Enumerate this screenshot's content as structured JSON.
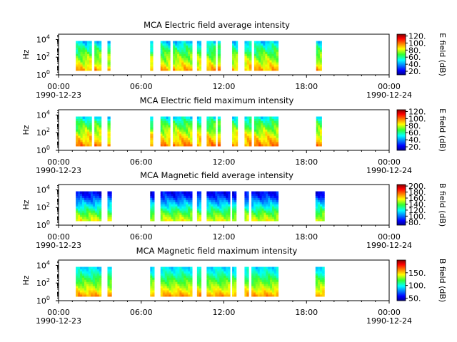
{
  "chart_data": [
    {
      "type": "heatmap",
      "title": "MCA  Electric field average intensity",
      "ylabel": "Hz",
      "colorbar_label": "E field (dB)",
      "colorbar_ticks": [
        "20.",
        "40.",
        "60.",
        "80.",
        "100.",
        "120."
      ],
      "colorbar_range": [
        10,
        125
      ],
      "ylim_log10": [
        0,
        4.6
      ],
      "yticks": [
        {
          "base": "10",
          "exp": "0"
        },
        {
          "base": "10",
          "exp": "2"
        },
        {
          "base": "10",
          "exp": "4"
        }
      ],
      "xticks": [
        {
          "time": "00:00",
          "date": "1990-12-23"
        },
        {
          "time": "06:00",
          "date": ""
        },
        {
          "time": "12:00",
          "date": ""
        },
        {
          "time": "18:00",
          "date": ""
        },
        {
          "time": "00:00",
          "date": "1990-12-24"
        }
      ],
      "xlim_hours": [
        0,
        24
      ],
      "data_intervals_hours": [
        [
          1.25,
          2.4
        ],
        [
          2.6,
          3.1
        ],
        [
          3.55,
          3.75
        ],
        [
          6.65,
          6.85
        ],
        [
          7.4,
          8.1
        ],
        [
          8.3,
          9.7
        ],
        [
          10.05,
          10.35
        ],
        [
          10.75,
          11.4
        ],
        [
          11.55,
          11.75
        ],
        [
          12.6,
          13.0
        ],
        [
          13.5,
          14.0
        ],
        [
          14.2,
          15.95
        ],
        [
          18.7,
          19.1
        ]
      ],
      "freq_profile_db": [
        {
          "log10_hz": 0.3,
          "db": 95
        },
        {
          "log10_hz": 1.3,
          "db": 82
        },
        {
          "log10_hz": 2.3,
          "db": 70
        },
        {
          "log10_hz": 3.3,
          "db": 55
        },
        {
          "log10_hz": 4.3,
          "db": 35
        }
      ]
    },
    {
      "type": "heatmap",
      "title": "MCA  Electric field maximum intensity",
      "ylabel": "Hz",
      "colorbar_label": "E field (dB)",
      "colorbar_ticks": [
        "20.",
        "40.",
        "60.",
        "80.",
        "100.",
        "120."
      ],
      "colorbar_range": [
        10,
        125
      ],
      "ylim_log10": [
        0,
        4.6
      ],
      "yticks": [
        {
          "base": "10",
          "exp": "0"
        },
        {
          "base": "10",
          "exp": "2"
        },
        {
          "base": "10",
          "exp": "4"
        }
      ],
      "xticks": [
        {
          "time": "00:00",
          "date": "1990-12-23"
        },
        {
          "time": "06:00",
          "date": ""
        },
        {
          "time": "12:00",
          "date": ""
        },
        {
          "time": "18:00",
          "date": ""
        },
        {
          "time": "00:00",
          "date": "1990-12-24"
        }
      ],
      "xlim_hours": [
        0,
        24
      ],
      "data_intervals_hours": [
        [
          1.25,
          2.4
        ],
        [
          2.6,
          3.1
        ],
        [
          3.55,
          3.75
        ],
        [
          6.65,
          6.85
        ],
        [
          7.4,
          8.1
        ],
        [
          8.3,
          9.7
        ],
        [
          10.05,
          10.35
        ],
        [
          10.75,
          11.4
        ],
        [
          11.55,
          11.75
        ],
        [
          12.6,
          13.0
        ],
        [
          13.5,
          14.0
        ],
        [
          14.2,
          15.95
        ],
        [
          18.7,
          19.1
        ]
      ],
      "freq_profile_db": [
        {
          "log10_hz": 0.3,
          "db": 100
        },
        {
          "log10_hz": 1.3,
          "db": 88
        },
        {
          "log10_hz": 2.3,
          "db": 75
        },
        {
          "log10_hz": 3.3,
          "db": 60
        },
        {
          "log10_hz": 4.3,
          "db": 40
        }
      ]
    },
    {
      "type": "heatmap",
      "title": "MCA  Magnetic field average intensity",
      "ylabel": "Hz",
      "colorbar_label": "B field (dB)",
      "colorbar_ticks": [
        "80.",
        "100.",
        "120.",
        "140.",
        "160.",
        "180.",
        "200."
      ],
      "colorbar_range": [
        70,
        205
      ],
      "ylim_log10": [
        0,
        4.6
      ],
      "yticks": [
        {
          "base": "10",
          "exp": "0"
        },
        {
          "base": "10",
          "exp": "2"
        },
        {
          "base": "10",
          "exp": "4"
        }
      ],
      "xticks": [
        {
          "time": "00:00",
          "date": "1990-12-23"
        },
        {
          "time": "06:00",
          "date": ""
        },
        {
          "time": "12:00",
          "date": ""
        },
        {
          "time": "18:00",
          "date": ""
        },
        {
          "time": "00:00",
          "date": "1990-12-24"
        }
      ],
      "xlim_hours": [
        0,
        24
      ],
      "data_intervals_hours": [
        [
          1.25,
          3.1
        ],
        [
          3.55,
          3.85
        ],
        [
          6.65,
          6.95
        ],
        [
          7.4,
          9.7
        ],
        [
          10.05,
          10.35
        ],
        [
          10.75,
          12.45
        ],
        [
          12.6,
          12.9
        ],
        [
          13.5,
          13.8
        ],
        [
          14.0,
          15.95
        ],
        [
          18.65,
          19.3
        ]
      ],
      "freq_profile_db": [
        {
          "log10_hz": 0.3,
          "db": 160
        },
        {
          "log10_hz": 1.3,
          "db": 140
        },
        {
          "log10_hz": 2.3,
          "db": 115
        },
        {
          "log10_hz": 3.3,
          "db": 90
        },
        {
          "log10_hz": 4.3,
          "db": 78
        }
      ]
    },
    {
      "type": "heatmap",
      "title": "MCA  Magnetic field maximum intensity",
      "ylabel": "Hz",
      "colorbar_label": "B field (dB)",
      "colorbar_ticks": [
        "50.",
        "100.",
        "150."
      ],
      "colorbar_range": [
        40,
        200
      ],
      "ylim_log10": [
        0,
        4.6
      ],
      "yticks": [
        {
          "base": "10",
          "exp": "0"
        },
        {
          "base": "10",
          "exp": "2"
        },
        {
          "base": "10",
          "exp": "4"
        }
      ],
      "xticks": [
        {
          "time": "00:00",
          "date": "1990-12-23"
        },
        {
          "time": "06:00",
          "date": ""
        },
        {
          "time": "12:00",
          "date": ""
        },
        {
          "time": "18:00",
          "date": ""
        },
        {
          "time": "00:00",
          "date": "1990-12-24"
        }
      ],
      "xlim_hours": [
        0,
        24
      ],
      "data_intervals_hours": [
        [
          1.25,
          3.1
        ],
        [
          3.55,
          3.85
        ],
        [
          6.65,
          6.95
        ],
        [
          7.4,
          9.7
        ],
        [
          10.05,
          10.35
        ],
        [
          10.75,
          12.45
        ],
        [
          12.6,
          12.9
        ],
        [
          13.5,
          13.8
        ],
        [
          14.0,
          15.95
        ],
        [
          18.65,
          19.3
        ]
      ],
      "freq_profile_db": [
        {
          "log10_hz": 0.3,
          "db": 165
        },
        {
          "log10_hz": 1.3,
          "db": 140
        },
        {
          "log10_hz": 2.3,
          "db": 120
        },
        {
          "log10_hz": 3.3,
          "db": 100
        },
        {
          "log10_hz": 4.3,
          "db": 85
        }
      ]
    }
  ]
}
